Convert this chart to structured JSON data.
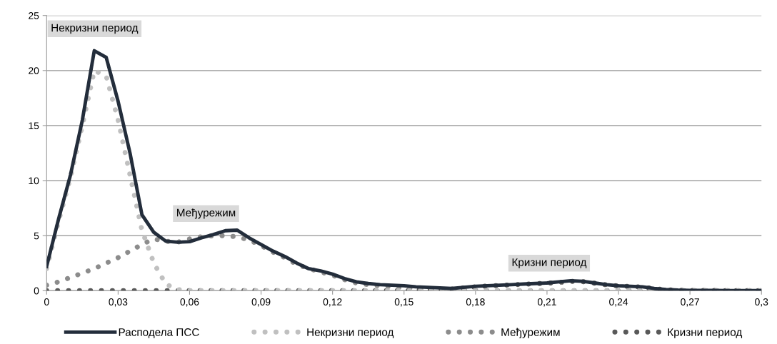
{
  "chart_data": {
    "type": "line",
    "x": [
      0,
      0.005,
      0.01,
      0.015,
      0.02,
      0.025,
      0.03,
      0.035,
      0.04,
      0.045,
      0.05,
      0.055,
      0.06,
      0.065,
      0.07,
      0.075,
      0.08,
      0.085,
      0.09,
      0.095,
      0.1,
      0.105,
      0.11,
      0.115,
      0.12,
      0.125,
      0.13,
      0.135,
      0.14,
      0.145,
      0.15,
      0.155,
      0.16,
      0.165,
      0.17,
      0.175,
      0.18,
      0.185,
      0.19,
      0.195,
      0.2,
      0.205,
      0.21,
      0.215,
      0.22,
      0.225,
      0.23,
      0.235,
      0.24,
      0.245,
      0.25,
      0.255,
      0.26,
      0.265,
      0.27,
      0.275,
      0.28,
      0.285,
      0.29,
      0.295,
      0.3
    ],
    "series": [
      {
        "name": "Расподела ПСС",
        "color": "#232d3b",
        "line_style": "solid",
        "values": [
          2.2,
          6.5,
          10.5,
          15.5,
          21.8,
          21.2,
          17.2,
          12.5,
          6.9,
          5.3,
          4.5,
          4.4,
          4.45,
          4.8,
          5.1,
          5.45,
          5.5,
          4.8,
          4.2,
          3.6,
          3.1,
          2.5,
          2.0,
          1.8,
          1.5,
          1.1,
          0.8,
          0.65,
          0.55,
          0.5,
          0.45,
          0.35,
          0.3,
          0.25,
          0.2,
          0.3,
          0.4,
          0.45,
          0.5,
          0.55,
          0.6,
          0.65,
          0.7,
          0.8,
          0.9,
          0.85,
          0.7,
          0.55,
          0.45,
          0.4,
          0.35,
          0.2,
          0.1,
          0.05,
          0.03,
          0.02,
          0.02,
          0.01,
          0.01,
          0.01,
          0.01
        ]
      },
      {
        "name": "Некризни период",
        "color": "#c0c0c0",
        "line_style": "dotted",
        "values": [
          2.0,
          6.3,
          10.3,
          15.0,
          20.0,
          19.5,
          15.5,
          10.5,
          5.5,
          2.5,
          0.6,
          0.1,
          0,
          0,
          0,
          0,
          0,
          0,
          0,
          0,
          0,
          0,
          0,
          0,
          0,
          0,
          0,
          0,
          0,
          0,
          0,
          0,
          0,
          0,
          0,
          0,
          0,
          0,
          0,
          0,
          0,
          0,
          0,
          0,
          0,
          0,
          0,
          0,
          0,
          0,
          0,
          0,
          0,
          0,
          0,
          0,
          0,
          0,
          0,
          0,
          0
        ]
      },
      {
        "name": "Међурежим",
        "color": "#8c8c8c",
        "line_style": "dotted",
        "values": [
          0.5,
          0.8,
          1.2,
          1.6,
          2.0,
          2.5,
          3.0,
          3.6,
          4.2,
          4.7,
          4.5,
          4.4,
          4.7,
          4.9,
          5.0,
          5.0,
          4.9,
          4.6,
          4.1,
          3.5,
          3.0,
          2.4,
          2.0,
          1.7,
          1.4,
          1.0,
          0.7,
          0.55,
          0.45,
          0.35,
          0.3,
          0.2,
          0.15,
          0.1,
          0.05,
          0.03,
          0.02,
          0.02,
          0.01,
          0.01,
          0,
          0,
          0,
          0,
          0,
          0,
          0,
          0,
          0,
          0,
          0,
          0,
          0,
          0,
          0,
          0,
          0,
          0,
          0,
          0,
          0
        ]
      },
      {
        "name": "Кризни период",
        "color": "#595959",
        "line_style": "dotted",
        "values": [
          0,
          0,
          0,
          0,
          0,
          0,
          0,
          0,
          0,
          0,
          0,
          0,
          0,
          0,
          0,
          0,
          0,
          0,
          0,
          0,
          0,
          0,
          0,
          0,
          0,
          0,
          0,
          0,
          0,
          0,
          0,
          0.05,
          0.1,
          0.12,
          0.15,
          0.25,
          0.35,
          0.42,
          0.48,
          0.53,
          0.58,
          0.63,
          0.68,
          0.75,
          0.85,
          0.82,
          0.68,
          0.53,
          0.43,
          0.38,
          0.33,
          0.18,
          0.09,
          0.05,
          0.03,
          0.02,
          0.02,
          0.01,
          0.01,
          0.01,
          0.01
        ]
      }
    ],
    "xlim": [
      0,
      0.3
    ],
    "xticks": [
      0,
      {
        "value": 0.03,
        "label": "0,03"
      },
      {
        "value": 0.06,
        "label": "0,06"
      },
      {
        "value": 0.09,
        "label": "0,09"
      },
      {
        "value": 0.12,
        "label": "0,12"
      },
      {
        "value": 0.15,
        "label": "0,15"
      },
      {
        "value": 0.18,
        "label": "0,18"
      },
      {
        "value": 0.21,
        "label": "0,21"
      },
      {
        "value": 0.24,
        "label": "0,24"
      },
      {
        "value": 0.27,
        "label": "0,27"
      },
      {
        "value": 0.3,
        "label": "0,3"
      }
    ],
    "ylim": [
      0,
      25
    ],
    "yticks": [
      0,
      5,
      10,
      15,
      20,
      25
    ],
    "grid": "y",
    "legend": "bottom",
    "marker": "none",
    "annotations": [
      "Некризни период",
      "Међурежим",
      "Кризни период"
    ]
  }
}
